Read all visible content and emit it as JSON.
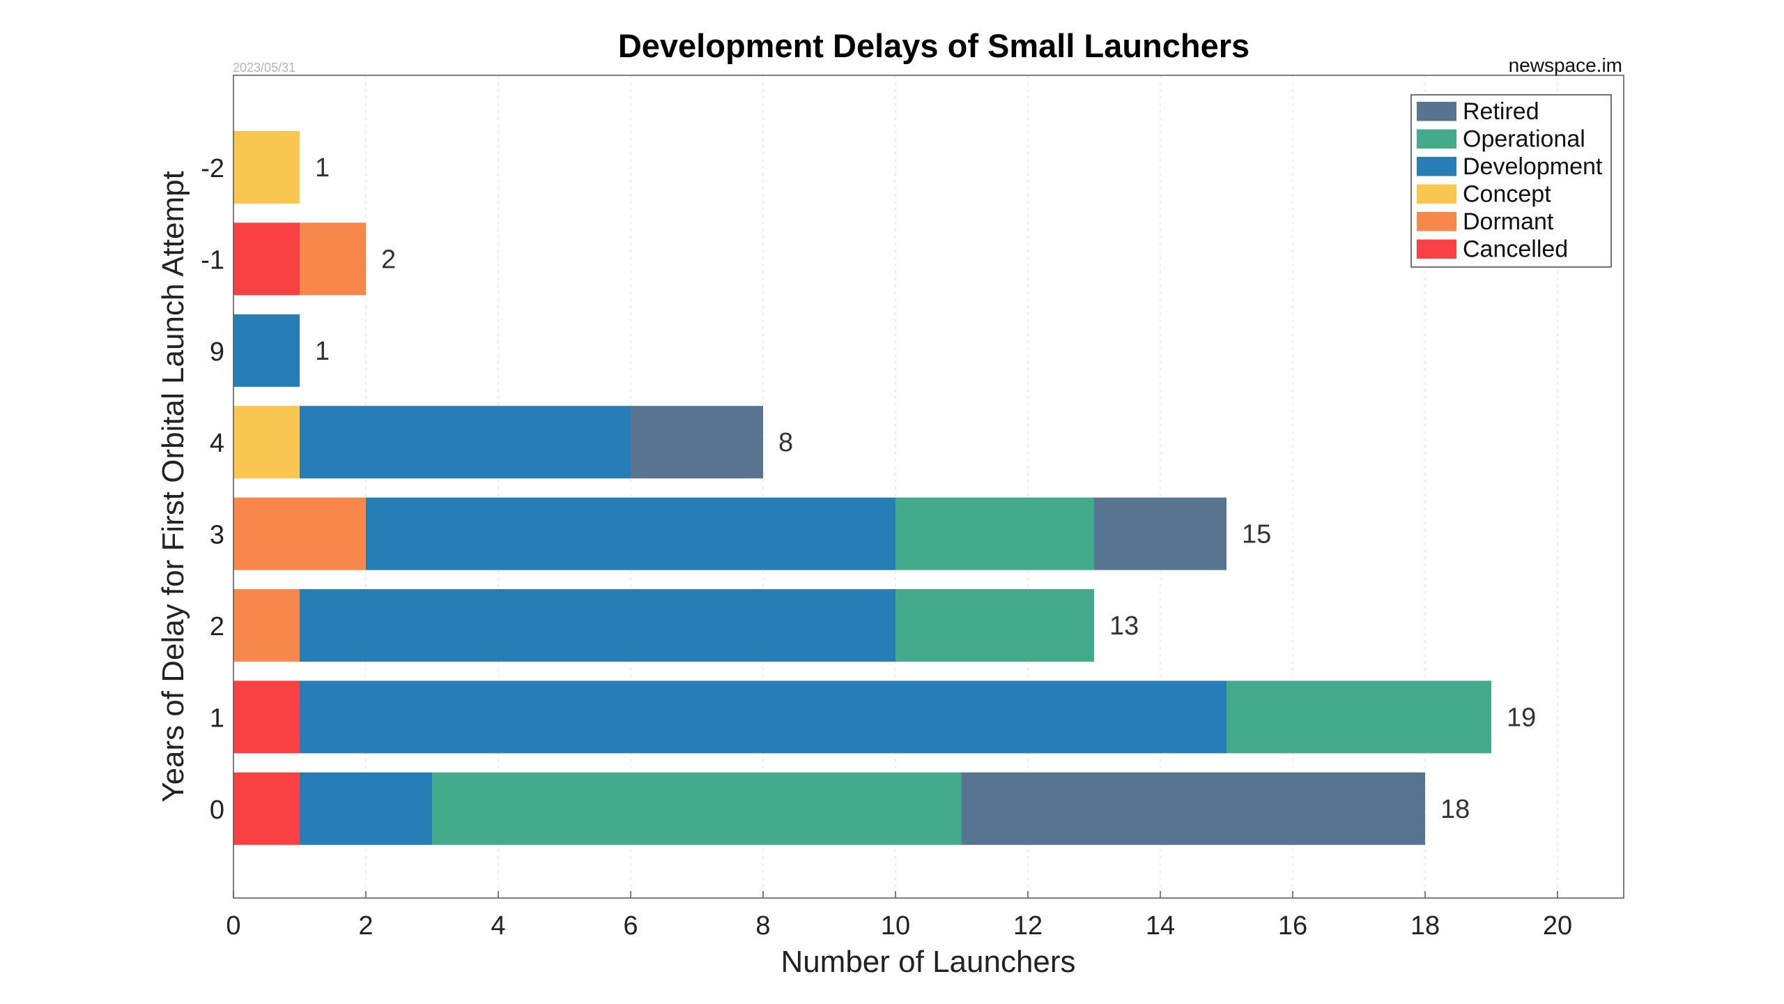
{
  "chart_data": {
    "type": "bar",
    "orientation": "horizontal",
    "stacked": true,
    "title": "Development Delays of Small Launchers",
    "date": "2023/05/31",
    "source": "newspace.im",
    "xlabel": "Number of Launchers",
    "ylabel": "Years of Delay for First Orbital Launch Attempt",
    "xlim": [
      0,
      21
    ],
    "xticks": [
      "0",
      "2",
      "4",
      "6",
      "8",
      "10",
      "12",
      "14",
      "16",
      "18",
      "20"
    ],
    "grid": "vertical, dashed",
    "legend_position": "top-right",
    "categories": [
      "-2",
      "-1",
      "9",
      "4",
      "3",
      "2",
      "1",
      "0"
    ],
    "series": [
      {
        "name": "Cancelled",
        "color": "#f94144",
        "values": [
          0,
          1,
          0,
          0,
          0,
          0,
          1,
          1
        ]
      },
      {
        "name": "Dormant",
        "color": "#f8874b",
        "values": [
          0,
          1,
          0,
          0,
          2,
          1,
          0,
          0
        ]
      },
      {
        "name": "Concept",
        "color": "#f9c74f",
        "values": [
          1,
          0,
          0,
          1,
          0,
          0,
          0,
          0
        ]
      },
      {
        "name": "Development",
        "color": "#277db5",
        "values": [
          0,
          0,
          1,
          5,
          8,
          9,
          14,
          2
        ]
      },
      {
        "name": "Operational",
        "color": "#43aa8b",
        "values": [
          0,
          0,
          0,
          0,
          3,
          3,
          4,
          8
        ]
      },
      {
        "name": "Retired",
        "color": "#577590",
        "values": [
          0,
          0,
          0,
          2,
          2,
          0,
          0,
          7
        ]
      }
    ],
    "totals": [
      "1",
      "2",
      "1",
      "8",
      "15",
      "13",
      "19",
      "18"
    ],
    "legend_order": [
      "Retired",
      "Operational",
      "Development",
      "Concept",
      "Dormant",
      "Cancelled"
    ]
  }
}
